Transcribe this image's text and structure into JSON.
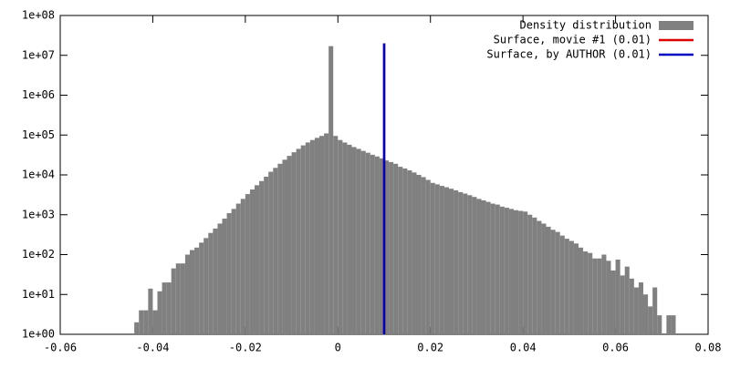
{
  "chart_data": {
    "type": "histogram",
    "name": "Density distribution",
    "color": "#808080",
    "log_y": true,
    "legend": "top right",
    "xlim": [
      -0.06,
      0.08
    ],
    "xticks": [
      -0.06,
      -0.04,
      -0.02,
      0,
      0.02,
      0.04,
      0.06,
      0.08
    ],
    "ylim": [
      1,
      100000000
    ],
    "yticks": [
      {
        "value": 1,
        "label": "1e+00"
      },
      {
        "value": 10,
        "label": "1e+01"
      },
      {
        "value": 100,
        "label": "1e+02"
      },
      {
        "value": 1000,
        "label": "1e+03"
      },
      {
        "value": 10000,
        "label": "1e+04"
      },
      {
        "value": 100000,
        "label": "1e+05"
      },
      {
        "value": 1000000,
        "label": "1e+06"
      },
      {
        "value": 10000000,
        "label": "1e+07"
      },
      {
        "value": 100000000,
        "label": "1e+08"
      }
    ],
    "bins": [
      -0.044,
      -0.043,
      -0.042,
      -0.041,
      -0.04,
      -0.039,
      -0.038,
      -0.037,
      -0.036,
      -0.035,
      -0.034,
      -0.033,
      -0.032,
      -0.031,
      -0.03,
      -0.029,
      -0.028,
      -0.027,
      -0.026,
      -0.025,
      -0.024,
      -0.023,
      -0.022,
      -0.021,
      -0.02,
      -0.019,
      -0.018,
      -0.017,
      -0.016,
      -0.015,
      -0.014,
      -0.013,
      -0.012,
      -0.011,
      -0.01,
      -0.009,
      -0.008,
      -0.007,
      -0.006,
      -0.005,
      -0.004,
      -0.003,
      -0.002,
      -0.001,
      0.0,
      0.001,
      0.002,
      0.003,
      0.004,
      0.005,
      0.006,
      0.007,
      0.008,
      0.009,
      0.01,
      0.011,
      0.012,
      0.013,
      0.014,
      0.015,
      0.016,
      0.017,
      0.018,
      0.019,
      0.02,
      0.021,
      0.022,
      0.023,
      0.024,
      0.025,
      0.026,
      0.027,
      0.028,
      0.029,
      0.03,
      0.031,
      0.032,
      0.033,
      0.034,
      0.035,
      0.036,
      0.037,
      0.038,
      0.039,
      0.04,
      0.041,
      0.042,
      0.043,
      0.044,
      0.045,
      0.046,
      0.047,
      0.048,
      0.049,
      0.05,
      0.051,
      0.052,
      0.053,
      0.054,
      0.055,
      0.056,
      0.057,
      0.058,
      0.059,
      0.06,
      0.061,
      0.062,
      0.063,
      0.064,
      0.065,
      0.066,
      0.067,
      0.068,
      0.069,
      0.07,
      0.071,
      0.072,
      0.073
    ],
    "counts": [
      2,
      4,
      4,
      14,
      4,
      12,
      20,
      20,
      45,
      60,
      60,
      100,
      130,
      150,
      200,
      260,
      350,
      450,
      600,
      800,
      1100,
      1400,
      1900,
      2500,
      3300,
      4300,
      5500,
      7000,
      9000,
      12000,
      15000,
      19000,
      24000,
      30000,
      37000,
      45000,
      55000,
      65000,
      75000,
      85000,
      95000,
      110000,
      17000000,
      95000,
      75000,
      65000,
      57000,
      50000,
      45000,
      40000,
      36000,
      32000,
      29000,
      26000,
      23000,
      21000,
      19000,
      16000,
      14500,
      13000,
      11500,
      10000,
      8800,
      7500,
      6300,
      5800,
      5300,
      4900,
      4500,
      4100,
      3700,
      3400,
      3100,
      2800,
      2500,
      2300,
      2100,
      1900,
      1800,
      1600,
      1500,
      1400,
      1300,
      1250,
      1200,
      1000,
      850,
      700,
      600,
      500,
      420,
      370,
      300,
      250,
      220,
      190,
      150,
      120,
      110,
      80,
      80,
      100,
      70,
      40,
      75,
      30,
      50,
      25,
      15,
      20,
      10,
      5,
      15,
      3,
      1,
      3,
      3
    ],
    "lines": [
      {
        "name": "Surface, movie #1 (0.01)",
        "color": "#dd0000",
        "x": 0.01,
        "y": [
          1,
          20000000
        ]
      },
      {
        "name": "Surface, by AUTHOR (0.01)",
        "color": "#0000c0",
        "x": 0.01,
        "y": [
          1,
          20000000
        ]
      }
    ]
  }
}
